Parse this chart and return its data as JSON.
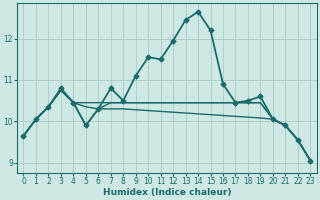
{
  "xlabel": "Humidex (Indice chaleur)",
  "background_color": "#cee9e5",
  "grid_color": "#a8ccc8",
  "line_color": "#1a6b6b",
  "xlim": [
    -0.5,
    23.5
  ],
  "ylim": [
    8.75,
    12.85
  ],
  "yticks": [
    9,
    10,
    11,
    12
  ],
  "xticks": [
    0,
    1,
    2,
    3,
    4,
    5,
    6,
    7,
    8,
    9,
    10,
    11,
    12,
    13,
    14,
    15,
    16,
    17,
    18,
    19,
    20,
    21,
    22,
    23
  ],
  "series": [
    {
      "x": [
        0,
        1,
        2,
        3,
        4,
        5,
        6,
        7,
        8,
        9,
        10,
        11,
        12,
        13,
        14,
        15,
        16,
        17,
        18,
        19,
        20,
        21,
        22,
        23
      ],
      "y": [
        9.65,
        10.05,
        10.35,
        10.8,
        10.45,
        9.9,
        10.3,
        10.8,
        10.5,
        11.1,
        11.55,
        11.5,
        11.95,
        12.45,
        12.65,
        12.2,
        10.9,
        10.45,
        10.5,
        10.6,
        10.05,
        9.9,
        9.55,
        9.05
      ],
      "marker": "D",
      "markersize": 2.5,
      "linewidth": 1.3
    },
    {
      "x": [
        0,
        1,
        2,
        3,
        4,
        5,
        6,
        7,
        8,
        9,
        10,
        11,
        12,
        13,
        14,
        15,
        16,
        17,
        18,
        19,
        20,
        21,
        22,
        23
      ],
      "y": [
        9.65,
        10.05,
        10.35,
        10.75,
        10.45,
        10.45,
        10.45,
        10.45,
        10.45,
        10.45,
        10.45,
        10.45,
        10.45,
        10.45,
        10.45,
        10.45,
        10.45,
        10.45,
        10.45,
        10.45,
        10.05,
        9.9,
        9.55,
        9.05
      ],
      "marker": null,
      "markersize": 0,
      "linewidth": 1.0
    },
    {
      "x": [
        0,
        1,
        2,
        3,
        4,
        5,
        6,
        7,
        8,
        9,
        10,
        11,
        12,
        13,
        14,
        15,
        16,
        17,
        18,
        19,
        20,
        21,
        22,
        23
      ],
      "y": [
        9.65,
        10.05,
        10.35,
        10.75,
        10.45,
        10.35,
        10.3,
        10.3,
        10.3,
        10.28,
        10.26,
        10.24,
        10.22,
        10.2,
        10.18,
        10.16,
        10.14,
        10.12,
        10.1,
        10.08,
        10.05,
        9.9,
        9.55,
        9.05
      ],
      "marker": null,
      "markersize": 0,
      "linewidth": 1.0
    },
    {
      "x": [
        0,
        1,
        2,
        3,
        4,
        5,
        6,
        7,
        8,
        9,
        10,
        11,
        12,
        13,
        14,
        15,
        16,
        17,
        18,
        19,
        20,
        21,
        22,
        23
      ],
      "y": [
        9.65,
        10.05,
        10.35,
        10.75,
        10.45,
        9.9,
        10.3,
        10.45,
        10.45,
        10.45,
        10.45,
        10.45,
        10.45,
        10.45,
        10.45,
        10.45,
        10.45,
        10.45,
        10.45,
        10.45,
        10.05,
        9.9,
        9.55,
        9.05
      ],
      "marker": null,
      "markersize": 0,
      "linewidth": 1.0
    }
  ]
}
